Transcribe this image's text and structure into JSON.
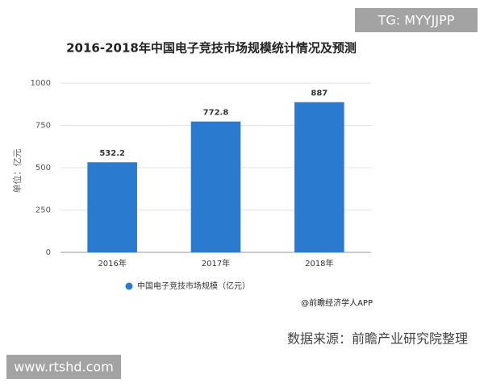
{
  "chart_data": {
    "type": "bar",
    "title": "2016-2018年中国电子竞技市场规模统计情况及预测",
    "y_label": "单位：亿元",
    "categories": [
      "2016年",
      "2017年",
      "2018年"
    ],
    "series": [
      {
        "name": "中国电子竞技市场规模（亿元）",
        "color": "#2a7bd0",
        "values": [
          532.2,
          772.8,
          887
        ]
      }
    ],
    "ylim": [
      0,
      1000
    ],
    "yticks": [
      0,
      250,
      500,
      750,
      1000
    ],
    "grid": true,
    "annotations": [
      "@前瞻经济学人APP",
      "数据来源：前瞻产业研究院整理"
    ],
    "watermarks": [
      "TG: MYYJJPP",
      "www.rtshd.com"
    ]
  }
}
